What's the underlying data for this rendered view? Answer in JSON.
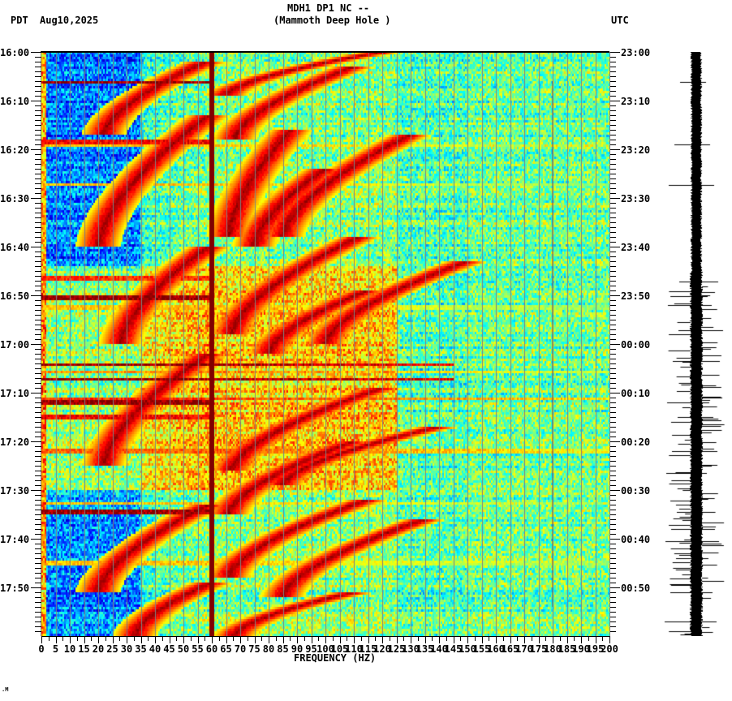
{
  "header": {
    "station_line": "MDH1 DP1 NC --",
    "location_line": "(Mammoth Deep Hole )",
    "left_timezone": "PDT",
    "date": "Aug10,2025",
    "right_timezone": "UTC"
  },
  "footer": {
    "corner_marker": ".M"
  },
  "chart_data": {
    "type": "heatmap",
    "title": "MDH1 DP1 NC -- (Mammoth Deep Hole )",
    "subtitle": "Aug10,2025",
    "xlabel": "FREQUENCY (HZ)",
    "ylabel_left": "PDT",
    "ylabel_right": "UTC",
    "xlim": [
      0,
      200
    ],
    "x_ticks": [
      0,
      5,
      10,
      15,
      20,
      25,
      30,
      35,
      40,
      45,
      50,
      55,
      60,
      65,
      70,
      75,
      80,
      85,
      90,
      95,
      100,
      105,
      110,
      115,
      120,
      125,
      130,
      135,
      140,
      145,
      150,
      155,
      160,
      165,
      170,
      175,
      180,
      185,
      190,
      195,
      200
    ],
    "x_minor_tick_step": 1,
    "y_ticks_left": [
      "16:00",
      "16:10",
      "16:20",
      "16:30",
      "16:40",
      "16:50",
      "17:00",
      "17:10",
      "17:20",
      "17:30",
      "17:40",
      "17:50"
    ],
    "y_ticks_right": [
      "23:00",
      "23:10",
      "23:20",
      "23:30",
      "23:40",
      "23:50",
      "00:00",
      "00:10",
      "00:20",
      "00:30",
      "00:40",
      "00:50"
    ],
    "y_minor_tick_step_minutes": 1,
    "time_span_minutes": 120,
    "colormap": "jet",
    "grid": {
      "vertical_every_hz": 5,
      "color": "#808080"
    },
    "persistent_lines_hz": [
      {
        "freq": 60,
        "strength": "strong",
        "width_hz": 1.6
      },
      {
        "freq": 180,
        "strength": "weak",
        "width_hz": 0.4
      }
    ],
    "horizontal_bands_min": [
      {
        "t": 6.3,
        "fmax": 60,
        "level": 1.0
      },
      {
        "t": 18.5,
        "fmax": 60,
        "level": 0.9
      },
      {
        "t": 19.2,
        "fmax": 200,
        "level": 0.7
      },
      {
        "t": 27.2,
        "fmax": 200,
        "level": 0.7
      },
      {
        "t": 46.5,
        "fmax": 60,
        "level": 0.85
      },
      {
        "t": 50.5,
        "fmax": 60,
        "level": 1.0
      },
      {
        "t": 52.5,
        "fmax": 200,
        "level": 0.7
      },
      {
        "t": 64.2,
        "fmax": 145,
        "level": 1.0
      },
      {
        "t": 67.2,
        "fmax": 145,
        "level": 1.0
      },
      {
        "t": 65.8,
        "fmax": 200,
        "level": 0.75
      },
      {
        "t": 71.2,
        "fmax": 200,
        "level": 0.85
      },
      {
        "t": 72.0,
        "fmax": 60,
        "level": 1.0
      },
      {
        "t": 75.0,
        "fmax": 60,
        "level": 0.9
      },
      {
        "t": 82.0,
        "fmax": 200,
        "level": 0.8
      },
      {
        "t": 92.7,
        "fmax": 200,
        "level": 0.7
      },
      {
        "t": 94.5,
        "fmax": 60,
        "level": 1.0
      },
      {
        "t": 105.0,
        "fmax": 200,
        "level": 0.7
      }
    ],
    "chirps": [
      {
        "t0": 2,
        "t1": 17,
        "f0": 58,
        "f1": 22,
        "shape": "downward"
      },
      {
        "t0": 0,
        "t1": 9,
        "f0": 120,
        "f1": 65,
        "shape": "downward"
      },
      {
        "t0": 3,
        "t1": 18,
        "f0": 110,
        "f1": 68,
        "shape": "downward"
      },
      {
        "t0": 13,
        "t1": 40,
        "f0": 59,
        "f1": 20,
        "shape": "downward"
      },
      {
        "t0": 16,
        "t1": 38,
        "f0": 88,
        "f1": 66,
        "shape": "downward"
      },
      {
        "t0": 17,
        "t1": 38,
        "f0": 130,
        "f1": 85,
        "shape": "downward"
      },
      {
        "t0": 24,
        "t1": 40,
        "f0": 100,
        "f1": 75,
        "shape": "downward"
      },
      {
        "t0": 40,
        "t1": 60,
        "f0": 59,
        "f1": 28,
        "shape": "downward"
      },
      {
        "t0": 38,
        "t1": 58,
        "f0": 112,
        "f1": 67,
        "shape": "downward"
      },
      {
        "t0": 43,
        "t1": 60,
        "f0": 150,
        "f1": 100,
        "shape": "downward"
      },
      {
        "t0": 49,
        "t1": 62,
        "f0": 115,
        "f1": 80,
        "shape": "downward"
      },
      {
        "t0": 62,
        "t1": 85,
        "f0": 59,
        "f1": 22,
        "shape": "downward"
      },
      {
        "t0": 69,
        "t1": 86,
        "f0": 120,
        "f1": 67,
        "shape": "downward"
      },
      {
        "t0": 77,
        "t1": 89,
        "f0": 140,
        "f1": 85,
        "shape": "downward"
      },
      {
        "t0": 80,
        "t1": 95,
        "f0": 110,
        "f1": 66,
        "shape": "downward"
      },
      {
        "t0": 93,
        "t1": 111,
        "f0": 59,
        "f1": 20,
        "shape": "downward"
      },
      {
        "t0": 92,
        "t1": 108,
        "f0": 115,
        "f1": 66,
        "shape": "downward"
      },
      {
        "t0": 96,
        "t1": 112,
        "f0": 135,
        "f1": 85,
        "shape": "downward"
      },
      {
        "t0": 109,
        "t1": 120,
        "f0": 60,
        "f1": 33,
        "shape": "downward"
      },
      {
        "t0": 111,
        "t1": 120,
        "f0": 110,
        "f1": 68,
        "shape": "downward"
      }
    ],
    "trace_spikes_min": [
      6.2,
      19.0,
      27.3,
      47.1,
      50.2,
      52.0,
      57.1,
      63.5,
      72.0,
      75.0,
      82.0,
      86.5,
      94.5,
      98.0,
      100.5,
      104.0,
      111.0,
      117.0
    ]
  }
}
